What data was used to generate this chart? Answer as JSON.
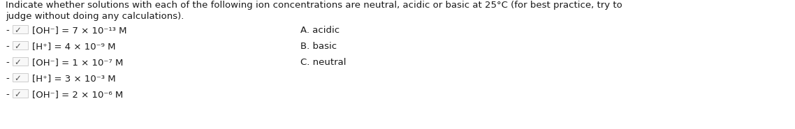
{
  "title_line1": "Indicate whether solutions with each of the following ion concentrations are neutral, acidic or basic at 25°C (for best practice, try to",
  "title_line2": "judge without doing any calculations).",
  "rows": [
    {
      "bullet": "-",
      "check": "✓",
      "formula": "[OH⁻] = 7 × 10",
      "exp": "⁻¹³",
      "unit": " M"
    },
    {
      "bullet": "-",
      "check": "✓",
      "formula": "[H⁺] = 4 × 10",
      "exp": "⁻⁹",
      "unit": " M"
    },
    {
      "bullet": "-",
      "check": "✓",
      "formula": "[OH⁻] = 1 × 10",
      "exp": "⁻⁷",
      "unit": " M"
    },
    {
      "bullet": "-",
      "check": "✓",
      "formula": "[H⁺] = 3 × 10",
      "exp": "⁻³",
      "unit": " M"
    },
    {
      "bullet": "-",
      "check": "✓",
      "formula": "[OH⁻] = 2 × 10",
      "exp": "⁻⁶",
      "unit": " M"
    }
  ],
  "options": [
    {
      "label": "A.",
      "text": " acidic"
    },
    {
      "label": "B.",
      "text": " basic"
    },
    {
      "label": "C.",
      "text": " neutral"
    }
  ],
  "bg_color": "#ffffff",
  "text_color": "#1a1a1a",
  "font_size": 9.5,
  "title_font_size": 9.5
}
